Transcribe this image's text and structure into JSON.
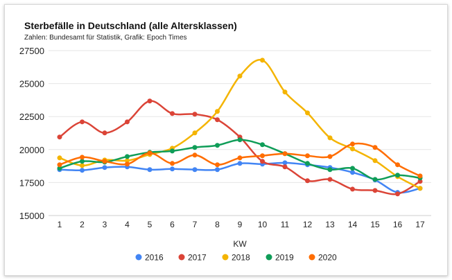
{
  "chart_data": {
    "type": "line",
    "title": "Sterbefälle in Deutschland (alle Altersklassen)",
    "subtitle": "Zahlen: Bundesamt für Statistik, Grafik: Epoch Times",
    "xlabel": "KW",
    "ylabel": "",
    "x": [
      1,
      2,
      3,
      4,
      5,
      6,
      7,
      8,
      9,
      10,
      11,
      12,
      13,
      14,
      15,
      16,
      17
    ],
    "yticks": [
      15000,
      17500,
      20000,
      22500,
      25000,
      27500
    ],
    "ylim": [
      15000,
      27500
    ],
    "grid": true,
    "legend": "bottom",
    "series": [
      {
        "name": "2016",
        "color": "#4285F4",
        "values": [
          18480,
          18430,
          18640,
          18690,
          18480,
          18530,
          18480,
          18480,
          18950,
          18900,
          19000,
          18850,
          18640,
          18270,
          17700,
          16750,
          17060
        ]
      },
      {
        "name": "2017",
        "color": "#DB4437",
        "values": [
          20950,
          22100,
          21260,
          22100,
          23680,
          22730,
          22680,
          22260,
          20950,
          19110,
          18690,
          17640,
          17740,
          17000,
          16900,
          16640,
          17590
        ]
      },
      {
        "name": "2018",
        "color": "#F4B400",
        "values": [
          19370,
          18790,
          19210,
          19160,
          19630,
          20100,
          21260,
          22890,
          25570,
          26770,
          24360,
          22780,
          20890,
          20050,
          19160,
          17950,
          17060
        ]
      },
      {
        "name": "2019",
        "color": "#0F9D58",
        "values": [
          18580,
          19110,
          19050,
          19470,
          19790,
          19890,
          20160,
          20320,
          20740,
          20370,
          19690,
          18950,
          18480,
          18580,
          17740,
          18060,
          17850
        ]
      },
      {
        "name": "2020",
        "color": "#FF6D01",
        "values": [
          18850,
          19420,
          19110,
          18900,
          19740,
          18950,
          19580,
          18850,
          19370,
          19530,
          19690,
          19530,
          19470,
          20420,
          20160,
          18850,
          18000
        ]
      }
    ]
  }
}
